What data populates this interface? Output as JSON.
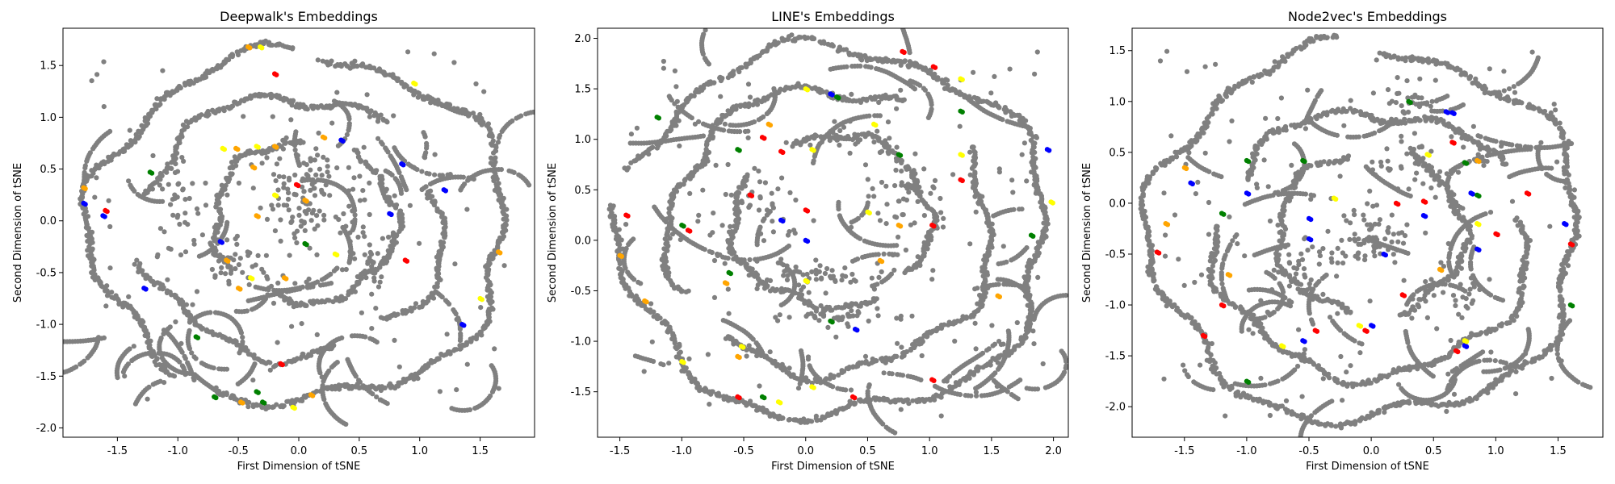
{
  "chart_data": [
    {
      "type": "scatter",
      "title": "Deepwalk's Embeddings",
      "xlabel": "First Dimension of tSNE",
      "ylabel": "Second Dimension of tSNE",
      "xlim": [
        -1.95,
        1.95
      ],
      "ylim": [
        -2.09,
        1.86
      ],
      "xticks": [
        -1.5,
        -1.0,
        -0.5,
        0.0,
        0.5,
        1.0,
        1.5
      ],
      "yticks": [
        -2.0,
        -1.5,
        -1.0,
        -0.5,
        0.0,
        0.5,
        1.0,
        1.5
      ],
      "grid": false,
      "legend": "none",
      "marker_colors": {
        "background": "#808080",
        "highlights": [
          "#ff0000",
          "#0000ff",
          "#008000",
          "#ffff00",
          "#ffa500"
        ]
      },
      "structure": {
        "rings": [
          {
            "cx": 0.0,
            "cy": -0.07,
            "rx": 1.72,
            "ry": 1.68,
            "gaps": [
              [
                1.45,
                1.6
              ],
              [
                4.1,
                4.3
              ]
            ]
          },
          {
            "cx": -0.05,
            "cy": -0.05,
            "rx": 1.25,
            "ry": 1.25,
            "gaps": [
              [
                0.3,
                0.9
              ],
              [
                2.9,
                3.4
              ],
              [
                5.0,
                5.4
              ]
            ]
          },
          {
            "cx": 0.05,
            "cy": 0.0,
            "rx": 0.75,
            "ry": 0.78,
            "gaps": [
              [
                1.0,
                1.6
              ],
              [
                3.8,
                4.4
              ]
            ]
          }
        ],
        "clusters": [
          {
            "x": 0.0,
            "y": 0.1,
            "sx": 0.3,
            "sy": 0.3,
            "n": 70
          },
          {
            "x": 0.6,
            "y": -0.3,
            "sx": 0.2,
            "sy": 0.35,
            "n": 40
          },
          {
            "x": -0.6,
            "y": -0.4,
            "sx": 0.3,
            "sy": 0.2,
            "n": 40
          },
          {
            "x": 0.1,
            "y": 0.45,
            "sx": 0.35,
            "sy": 0.2,
            "n": 40
          },
          {
            "x": -1.0,
            "y": 0.2,
            "sx": 0.15,
            "sy": 0.4,
            "n": 25
          }
        ],
        "n_scatter": 120
      },
      "highlighted_points": [
        {
          "x": 0.35,
          "y": 0.78,
          "c": "#0000ff"
        },
        {
          "x": 0.95,
          "y": 1.33,
          "c": "#ffff00"
        },
        {
          "x": -0.2,
          "y": 1.42,
          "c": "#ff0000"
        },
        {
          "x": -0.42,
          "y": 1.68,
          "c": "#ffa500"
        },
        {
          "x": -0.32,
          "y": 1.68,
          "c": "#ffff00"
        },
        {
          "x": -1.78,
          "y": 0.32,
          "c": "#ffa500"
        },
        {
          "x": -1.78,
          "y": 0.17,
          "c": "#0000ff"
        },
        {
          "x": -1.6,
          "y": 0.1,
          "c": "#ff0000"
        },
        {
          "x": -1.62,
          "y": 0.05,
          "c": "#0000ff"
        },
        {
          "x": -1.23,
          "y": 0.47,
          "c": "#008000"
        },
        {
          "x": -0.63,
          "y": 0.7,
          "c": "#ffff00"
        },
        {
          "x": -0.52,
          "y": 0.7,
          "c": "#ffa500"
        },
        {
          "x": -0.35,
          "y": 0.72,
          "c": "#ffff00"
        },
        {
          "x": -0.2,
          "y": 0.72,
          "c": "#ffa500"
        },
        {
          "x": 0.2,
          "y": 0.81,
          "c": "#ffa500"
        },
        {
          "x": -0.38,
          "y": 0.52,
          "c": "#ffa500"
        },
        {
          "x": -0.2,
          "y": 0.25,
          "c": "#ffff00"
        },
        {
          "x": -0.35,
          "y": 0.05,
          "c": "#ffa500"
        },
        {
          "x": -0.02,
          "y": 0.35,
          "c": "#ff0000"
        },
        {
          "x": 0.05,
          "y": 0.2,
          "c": "#ffa500"
        },
        {
          "x": 0.05,
          "y": -0.22,
          "c": "#008000"
        },
        {
          "x": 0.3,
          "y": -0.32,
          "c": "#ffff00"
        },
        {
          "x": -0.65,
          "y": -0.2,
          "c": "#0000ff"
        },
        {
          "x": -0.6,
          "y": -0.38,
          "c": "#ffa500"
        },
        {
          "x": -0.4,
          "y": -0.55,
          "c": "#ffff00"
        },
        {
          "x": -0.12,
          "y": -0.55,
          "c": "#ffa500"
        },
        {
          "x": -0.5,
          "y": -0.65,
          "c": "#ffa500"
        },
        {
          "x": -1.28,
          "y": -0.65,
          "c": "#0000ff"
        },
        {
          "x": -0.85,
          "y": -1.12,
          "c": "#008000"
        },
        {
          "x": -0.15,
          "y": -1.38,
          "c": "#ff0000"
        },
        {
          "x": -0.7,
          "y": -1.7,
          "c": "#008000"
        },
        {
          "x": -0.48,
          "y": -1.75,
          "c": "#ffa500"
        },
        {
          "x": -0.35,
          "y": -1.65,
          "c": "#008000"
        },
        {
          "x": -0.3,
          "y": -1.75,
          "c": "#008000"
        },
        {
          "x": -0.05,
          "y": -1.8,
          "c": "#ffff00"
        },
        {
          "x": 0.1,
          "y": -1.68,
          "c": "#ffa500"
        },
        {
          "x": 0.75,
          "y": 0.07,
          "c": "#0000ff"
        },
        {
          "x": 1.2,
          "y": 0.3,
          "c": "#0000ff"
        },
        {
          "x": 0.88,
          "y": -0.38,
          "c": "#ff0000"
        },
        {
          "x": 1.65,
          "y": -0.3,
          "c": "#ffa500"
        },
        {
          "x": 1.5,
          "y": -0.75,
          "c": "#ffff00"
        },
        {
          "x": 1.35,
          "y": -1.0,
          "c": "#0000ff"
        },
        {
          "x": 0.85,
          "y": 0.55,
          "c": "#0000ff"
        }
      ],
      "seed": 11
    },
    {
      "type": "scatter",
      "title": "LINE's Embeddings",
      "xlabel": "First Dimension of tSNE",
      "ylabel": "Second Dimension of tSNE",
      "xlim": [
        -1.68,
        2.12
      ],
      "ylim": [
        -1.95,
        2.1
      ],
      "xticks": [
        -1.5,
        -1.0,
        -0.5,
        0.0,
        0.5,
        1.0,
        1.5,
        2.0
      ],
      "yticks": [
        -1.5,
        -1.0,
        -0.5,
        0.0,
        0.5,
        1.0,
        1.5,
        2.0
      ],
      "grid": false,
      "legend": "none",
      "marker_colors": {
        "background": "#808080",
        "highlights": [
          "#ff0000",
          "#0000ff",
          "#008000",
          "#ffff00",
          "#ffa500"
        ]
      },
      "structure": {
        "rings": [
          {
            "cx": 0.22,
            "cy": 0.08,
            "rx": 1.73,
            "ry": 1.82,
            "gaps": [
              [
                2.8,
                3.0
              ]
            ]
          },
          {
            "cx": 0.2,
            "cy": 0.1,
            "rx": 1.3,
            "ry": 1.4,
            "gaps": [
              [
                0.6,
                1.1
              ],
              [
                3.6,
                4.0
              ]
            ]
          },
          {
            "cx": 0.2,
            "cy": 0.2,
            "rx": 0.8,
            "ry": 0.85,
            "gaps": [
              [
                2.0,
                2.6
              ],
              [
                5.2,
                5.6
              ]
            ]
          }
        ],
        "clusters": [
          {
            "x": 0.0,
            "y": -0.35,
            "sx": 0.45,
            "sy": 0.12,
            "n": 60
          },
          {
            "x": 0.8,
            "y": 0.4,
            "sx": 0.25,
            "sy": 0.35,
            "n": 45
          },
          {
            "x": -0.4,
            "y": 0.3,
            "sx": 0.3,
            "sy": 0.3,
            "n": 40
          },
          {
            "x": 0.2,
            "y": -0.75,
            "sx": 0.5,
            "sy": 0.05,
            "n": 35
          },
          {
            "x": 0.3,
            "y": 1.0,
            "sx": 0.35,
            "sy": 0.2,
            "n": 35
          }
        ],
        "n_scatter": 120
      },
      "highlighted_points": [
        {
          "x": 0.78,
          "y": 1.87,
          "c": "#ff0000"
        },
        {
          "x": 1.03,
          "y": 1.72,
          "c": "#ff0000"
        },
        {
          "x": 1.25,
          "y": 1.6,
          "c": "#ffff00"
        },
        {
          "x": 0.0,
          "y": 1.5,
          "c": "#ffff00"
        },
        {
          "x": 0.2,
          "y": 1.45,
          "c": "#0000ff"
        },
        {
          "x": 0.25,
          "y": 1.42,
          "c": "#008000"
        },
        {
          "x": -1.2,
          "y": 1.22,
          "c": "#008000"
        },
        {
          "x": -0.3,
          "y": 1.15,
          "c": "#ffa500"
        },
        {
          "x": -0.35,
          "y": 1.02,
          "c": "#ff0000"
        },
        {
          "x": -0.2,
          "y": 0.88,
          "c": "#ff0000"
        },
        {
          "x": -0.55,
          "y": 0.9,
          "c": "#008000"
        },
        {
          "x": 0.05,
          "y": 0.9,
          "c": "#ffff00"
        },
        {
          "x": 0.55,
          "y": 1.15,
          "c": "#ffff00"
        },
        {
          "x": 0.75,
          "y": 0.85,
          "c": "#008000"
        },
        {
          "x": 1.25,
          "y": 1.28,
          "c": "#008000"
        },
        {
          "x": 1.25,
          "y": 0.85,
          "c": "#ffff00"
        },
        {
          "x": 1.25,
          "y": 0.6,
          "c": "#ff0000"
        },
        {
          "x": 1.95,
          "y": 0.9,
          "c": "#0000ff"
        },
        {
          "x": 1.98,
          "y": 0.38,
          "c": "#ffff00"
        },
        {
          "x": 1.82,
          "y": 0.05,
          "c": "#008000"
        },
        {
          "x": -1.45,
          "y": 0.25,
          "c": "#ff0000"
        },
        {
          "x": -1.5,
          "y": -0.15,
          "c": "#ffa500"
        },
        {
          "x": -1.0,
          "y": 0.15,
          "c": "#008000"
        },
        {
          "x": -0.95,
          "y": 0.1,
          "c": "#ff0000"
        },
        {
          "x": -0.45,
          "y": 0.45,
          "c": "#ff0000"
        },
        {
          "x": -0.2,
          "y": 0.2,
          "c": "#0000ff"
        },
        {
          "x": 0.0,
          "y": 0.3,
          "c": "#ff0000"
        },
        {
          "x": 0.0,
          "y": 0.0,
          "c": "#0000ff"
        },
        {
          "x": 0.5,
          "y": 0.28,
          "c": "#ffff00"
        },
        {
          "x": 0.75,
          "y": 0.15,
          "c": "#ffa500"
        },
        {
          "x": 1.02,
          "y": 0.15,
          "c": "#ff0000"
        },
        {
          "x": -0.62,
          "y": -0.32,
          "c": "#008000"
        },
        {
          "x": -0.65,
          "y": -0.42,
          "c": "#ffa500"
        },
        {
          "x": -1.3,
          "y": -0.6,
          "c": "#ffa500"
        },
        {
          "x": 0.6,
          "y": -0.2,
          "c": "#ffa500"
        },
        {
          "x": 0.0,
          "y": -0.4,
          "c": "#ffff00"
        },
        {
          "x": 0.2,
          "y": -0.8,
          "c": "#008000"
        },
        {
          "x": 0.4,
          "y": -0.88,
          "c": "#0000ff"
        },
        {
          "x": -0.52,
          "y": -1.05,
          "c": "#ffff00"
        },
        {
          "x": -0.55,
          "y": -1.15,
          "c": "#ffa500"
        },
        {
          "x": -1.0,
          "y": -1.2,
          "c": "#ffff00"
        },
        {
          "x": -0.55,
          "y": -1.55,
          "c": "#ff0000"
        },
        {
          "x": -0.35,
          "y": -1.55,
          "c": "#008000"
        },
        {
          "x": -0.22,
          "y": -1.6,
          "c": "#ffff00"
        },
        {
          "x": 0.05,
          "y": -1.45,
          "c": "#ffff00"
        },
        {
          "x": 0.38,
          "y": -1.55,
          "c": "#ff0000"
        },
        {
          "x": 1.02,
          "y": -1.38,
          "c": "#ff0000"
        },
        {
          "x": 1.55,
          "y": -0.55,
          "c": "#ffa500"
        }
      ],
      "seed": 23
    },
    {
      "type": "scatter",
      "title": "Node2vec's Embeddings",
      "xlabel": "First Dimension of tSNE",
      "ylabel": "Second Dimension of tSNE",
      "xlim": [
        -1.92,
        1.86
      ],
      "ylim": [
        -2.3,
        1.72
      ],
      "xticks": [
        -1.5,
        -1.0,
        -0.5,
        0.0,
        0.5,
        1.0,
        1.5
      ],
      "yticks": [
        -2.0,
        -1.5,
        -1.0,
        -0.5,
        0.0,
        0.5,
        1.0,
        1.5
      ],
      "grid": false,
      "legend": "none",
      "marker_colors": {
        "background": "#808080",
        "highlights": [
          "#ff0000",
          "#0000ff",
          "#008000",
          "#ffff00",
          "#ffa500"
        ]
      },
      "structure": {
        "rings": [
          {
            "cx": -0.05,
            "cy": -0.3,
            "rx": 1.72,
            "ry": 1.83,
            "gaps": [
              [
                1.5,
                1.7
              ]
            ]
          },
          {
            "cx": 0.0,
            "cy": -0.4,
            "rx": 1.25,
            "ry": 1.3,
            "gaps": [
              [
                0.2,
                0.6
              ],
              [
                2.6,
                3.0
              ]
            ]
          },
          {
            "cx": 0.0,
            "cy": -0.3,
            "rx": 0.75,
            "ry": 0.8,
            "gaps": [
              [
                1.2,
                1.8
              ],
              [
                4.5,
                5.0
              ]
            ]
          }
        ],
        "clusters": [
          {
            "x": 0.0,
            "y": -0.3,
            "sx": 0.25,
            "sy": 0.25,
            "n": 70
          },
          {
            "x": 0.4,
            "y": 0.4,
            "sx": 0.3,
            "sy": 0.3,
            "n": 40
          },
          {
            "x": -0.5,
            "y": -0.6,
            "sx": 0.25,
            "sy": 0.3,
            "n": 35
          },
          {
            "x": 0.3,
            "y": 1.0,
            "sx": 0.25,
            "sy": 0.2,
            "n": 35
          },
          {
            "x": 0.6,
            "y": -0.9,
            "sx": 0.25,
            "sy": 0.3,
            "n": 30
          }
        ],
        "n_scatter": 120
      },
      "highlighted_points": [
        {
          "x": 0.3,
          "y": 1.0,
          "c": "#008000"
        },
        {
          "x": 0.6,
          "y": 0.9,
          "c": "#0000ff"
        },
        {
          "x": 0.65,
          "y": 0.89,
          "c": "#0000ff"
        },
        {
          "x": 0.65,
          "y": 0.6,
          "c": "#ff0000"
        },
        {
          "x": 0.75,
          "y": 0.4,
          "c": "#008000"
        },
        {
          "x": 0.85,
          "y": 0.42,
          "c": "#ffa500"
        },
        {
          "x": 0.8,
          "y": 0.1,
          "c": "#0000ff"
        },
        {
          "x": 0.85,
          "y": 0.08,
          "c": "#008000"
        },
        {
          "x": 1.25,
          "y": 0.1,
          "c": "#ff0000"
        },
        {
          "x": 0.45,
          "y": 0.48,
          "c": "#ffff00"
        },
        {
          "x": -1.5,
          "y": 0.35,
          "c": "#ffa500"
        },
        {
          "x": -1.45,
          "y": 0.2,
          "c": "#0000ff"
        },
        {
          "x": -1.0,
          "y": 0.42,
          "c": "#008000"
        },
        {
          "x": -0.55,
          "y": 0.42,
          "c": "#008000"
        },
        {
          "x": -0.3,
          "y": 0.05,
          "c": "#ffff00"
        },
        {
          "x": -0.5,
          "y": -0.15,
          "c": "#0000ff"
        },
        {
          "x": -0.5,
          "y": -0.35,
          "c": "#0000ff"
        },
        {
          "x": 0.2,
          "y": 0.0,
          "c": "#ff0000"
        },
        {
          "x": 0.1,
          "y": -0.5,
          "c": "#0000ff"
        },
        {
          "x": 0.42,
          "y": 0.02,
          "c": "#ff0000"
        },
        {
          "x": 0.42,
          "y": -0.12,
          "c": "#0000ff"
        },
        {
          "x": 0.85,
          "y": -0.2,
          "c": "#ffff00"
        },
        {
          "x": 0.85,
          "y": -0.45,
          "c": "#0000ff"
        },
        {
          "x": 1.0,
          "y": -0.3,
          "c": "#ff0000"
        },
        {
          "x": -1.72,
          "y": -0.48,
          "c": "#ff0000"
        },
        {
          "x": -1.65,
          "y": -0.2,
          "c": "#ffa500"
        },
        {
          "x": -1.2,
          "y": -0.1,
          "c": "#008000"
        },
        {
          "x": -1.2,
          "y": -1.0,
          "c": "#ff0000"
        },
        {
          "x": -1.35,
          "y": -1.3,
          "c": "#ff0000"
        },
        {
          "x": -1.15,
          "y": -0.7,
          "c": "#ffa500"
        },
        {
          "x": -0.55,
          "y": -1.35,
          "c": "#0000ff"
        },
        {
          "x": -0.45,
          "y": -1.25,
          "c": "#ff0000"
        },
        {
          "x": -0.72,
          "y": -1.4,
          "c": "#ffff00"
        },
        {
          "x": -1.0,
          "y": -1.75,
          "c": "#008000"
        },
        {
          "x": -0.1,
          "y": -1.2,
          "c": "#ffff00"
        },
        {
          "x": -0.05,
          "y": -1.25,
          "c": "#ff0000"
        },
        {
          "x": 0.0,
          "y": -1.2,
          "c": "#0000ff"
        },
        {
          "x": 0.25,
          "y": -0.9,
          "c": "#ff0000"
        },
        {
          "x": 0.55,
          "y": -0.65,
          "c": "#ffa500"
        },
        {
          "x": 0.75,
          "y": -1.4,
          "c": "#0000ff"
        },
        {
          "x": 0.68,
          "y": -1.45,
          "c": "#ff0000"
        },
        {
          "x": 0.75,
          "y": -1.35,
          "c": "#ffff00"
        },
        {
          "x": 1.55,
          "y": -0.2,
          "c": "#0000ff"
        },
        {
          "x": 1.6,
          "y": -0.4,
          "c": "#ff0000"
        },
        {
          "x": 1.6,
          "y": -1.0,
          "c": "#008000"
        },
        {
          "x": -1.0,
          "y": 0.1,
          "c": "#0000ff"
        }
      ],
      "seed": 37
    }
  ]
}
